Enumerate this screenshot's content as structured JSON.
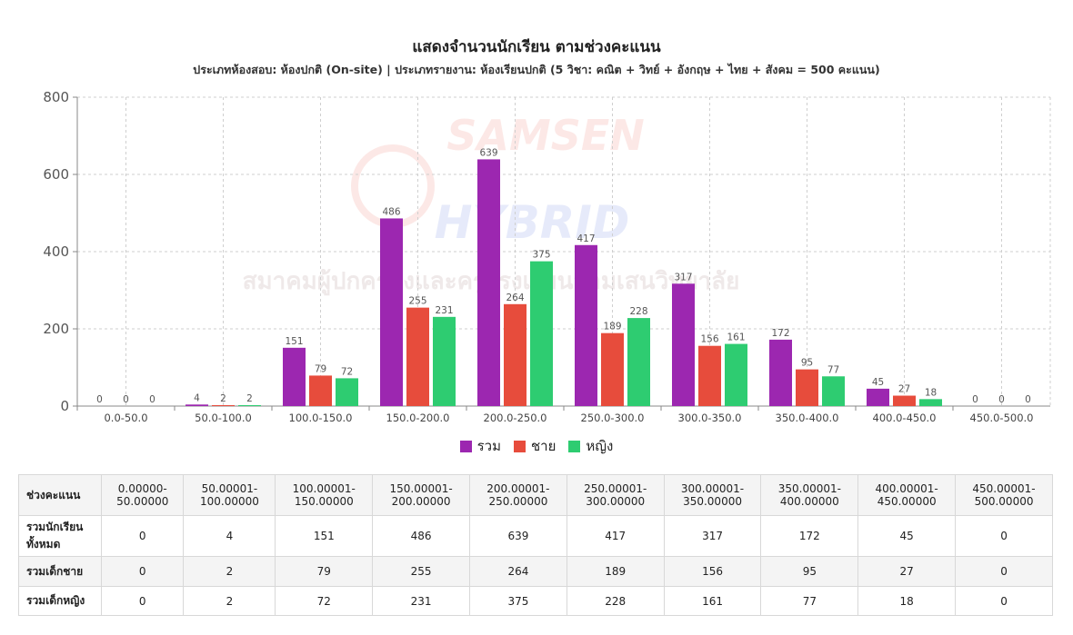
{
  "page": {
    "title": "แสดงจำนวนนักเรียน ตามช่วงคะแนน",
    "subtitle": "ประเภทห้องสอบ: ห้องปกติ (On-site) | ประเภทรายงาน: ห้องเรียนปกติ (5 วิชา: คณิต + วิทย์ + อังกฤษ + ไทย + สังคม = 500 คะแนน)",
    "watermark_text": "สมาคมผู้ปกครองและครูโรงเรียนสามเสนวิทยาลัย",
    "watermark_logo_text": [
      "SAMSEN",
      "HYBRID"
    ]
  },
  "chart_data": {
    "type": "bar",
    "categories": [
      "0.0-50.0",
      "50.0-100.0",
      "100.0-150.0",
      "150.0-200.0",
      "200.0-250.0",
      "250.0-300.0",
      "300.0-350.0",
      "350.0-400.0",
      "400.0-450.0",
      "450.0-500.0"
    ],
    "series": [
      {
        "name": "รวม",
        "color": "#9c27b0",
        "values": [
          0,
          4,
          151,
          486,
          639,
          417,
          317,
          172,
          45,
          0
        ]
      },
      {
        "name": "ชาย",
        "color": "#e74c3c",
        "values": [
          0,
          2,
          79,
          255,
          264,
          189,
          156,
          95,
          27,
          0
        ]
      },
      {
        "name": "หญิง",
        "color": "#2ecc71",
        "values": [
          0,
          2,
          72,
          231,
          375,
          228,
          161,
          77,
          18,
          0
        ]
      }
    ],
    "ylim": [
      0,
      800
    ],
    "yticks": [
      0,
      200,
      400,
      600,
      800
    ],
    "grid": true,
    "legend": "bottom"
  },
  "table": {
    "header_label": "ช่วงคะแนน",
    "columns": [
      [
        "0.00000-",
        "50.00000"
      ],
      [
        "50.00001-",
        "100.00000"
      ],
      [
        "100.00001-",
        "150.00000"
      ],
      [
        "150.00001-",
        "200.00000"
      ],
      [
        "200.00001-",
        "250.00000"
      ],
      [
        "250.00001-",
        "300.00000"
      ],
      [
        "300.00001-",
        "350.00000"
      ],
      [
        "350.00001-",
        "400.00000"
      ],
      [
        "400.00001-",
        "450.00000"
      ],
      [
        "450.00001-",
        "500.00000"
      ]
    ],
    "rows": [
      {
        "label": [
          "รวมนักเรียน",
          "ทั้งหมด"
        ],
        "values": [
          "0",
          "4",
          "151",
          "486",
          "639",
          "417",
          "317",
          "172",
          "45",
          "0"
        ]
      },
      {
        "label": [
          "รวมเด็กชาย"
        ],
        "values": [
          "0",
          "2",
          "79",
          "255",
          "264",
          "189",
          "156",
          "95",
          "27",
          "0"
        ]
      },
      {
        "label": [
          "รวมเด็กหญิง"
        ],
        "values": [
          "0",
          "2",
          "72",
          "231",
          "375",
          "228",
          "161",
          "77",
          "18",
          "0"
        ]
      }
    ]
  }
}
